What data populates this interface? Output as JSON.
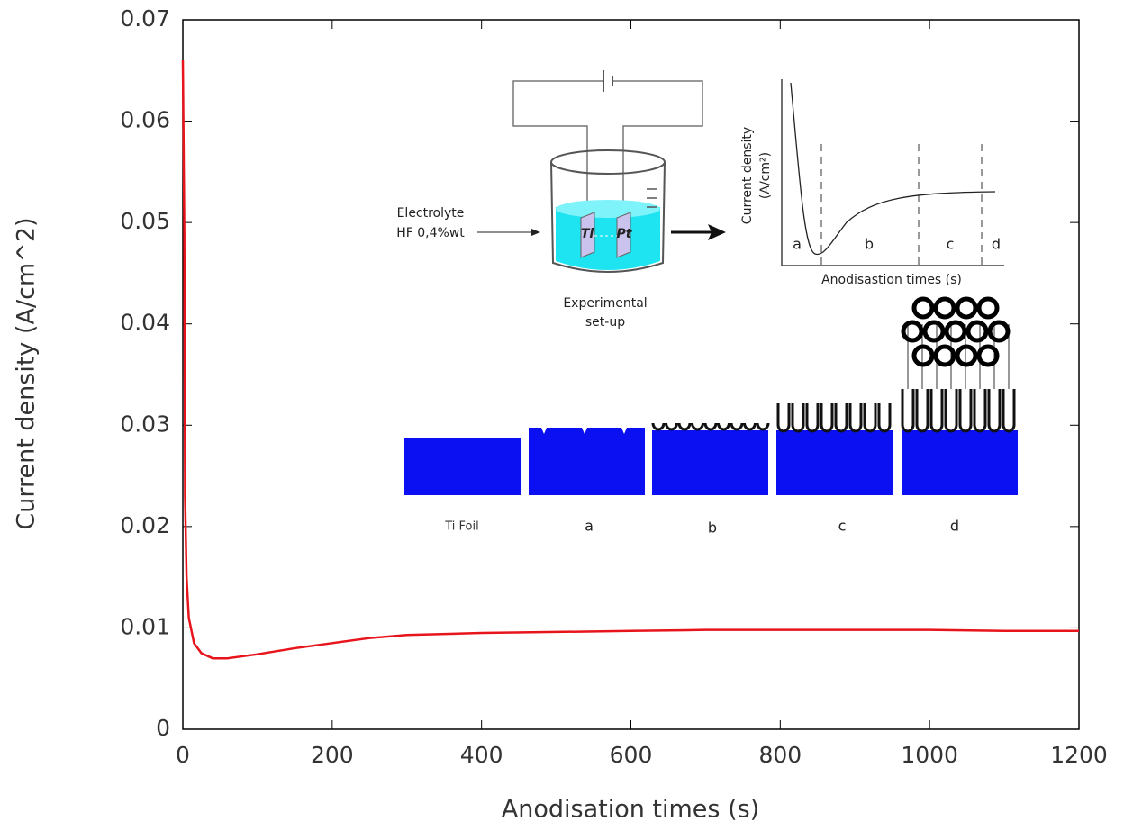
{
  "chart_data": {
    "type": "line",
    "xlabel": "Anodisation times (s)",
    "ylabel": "Current density (A/cm^2)",
    "x": [
      0,
      2,
      3,
      5,
      8,
      15,
      25,
      40,
      60,
      100,
      150,
      200,
      250,
      300,
      400,
      500,
      600,
      700,
      800,
      900,
      1000,
      1100,
      1200
    ],
    "values": [
      0.066,
      0.049,
      0.023,
      0.015,
      0.011,
      0.0085,
      0.0075,
      0.007,
      0.007,
      0.0074,
      0.008,
      0.0085,
      0.009,
      0.0093,
      0.0095,
      0.0096,
      0.0097,
      0.0098,
      0.0098,
      0.0098,
      0.0098,
      0.0097,
      0.0097
    ],
    "color": "#e8141b",
    "xlim": [
      0,
      1200
    ],
    "ylim": [
      0,
      0.07
    ],
    "xticks": [
      0,
      200,
      400,
      600,
      800,
      1000,
      1200
    ],
    "yticks": [
      0,
      0.01,
      0.02,
      0.03,
      0.04,
      0.05,
      0.06,
      0.07
    ],
    "inset": {
      "electrolyte_label": [
        "Electrolyte",
        "HF 0,4%wt"
      ],
      "electrodes": [
        "Ti",
        "Pt"
      ],
      "setup_label": [
        "Experimental",
        "set-up"
      ],
      "plot_ylabel": [
        "Current density",
        "(A/cm²)"
      ],
      "plot_xlabel": "Anodisastion times (s)",
      "phases": [
        "a",
        "b",
        "c",
        "d"
      ],
      "stages": [
        "Ti Foil",
        "a",
        "b",
        "c",
        "d"
      ]
    }
  }
}
